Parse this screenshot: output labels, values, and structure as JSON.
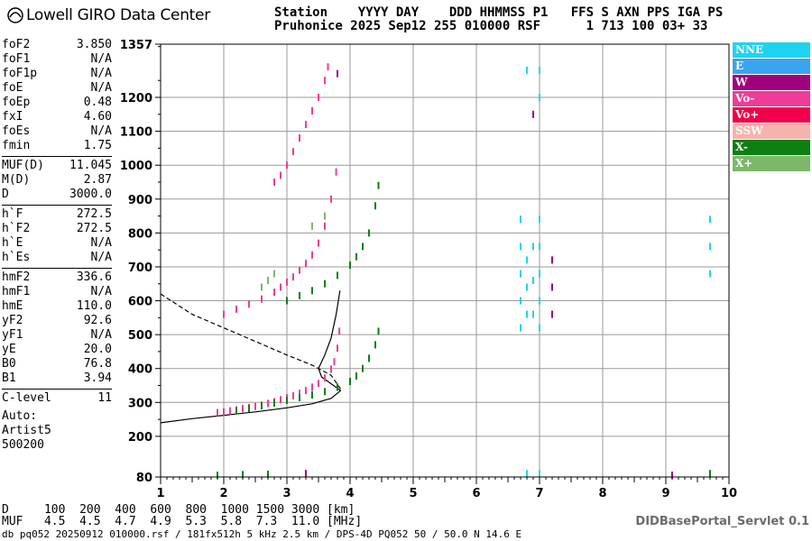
{
  "header": {
    "logo_text": "Lowell GIRO Data Center",
    "line1": "Station    YYYY DAY    DDD HHMMSS P1   FFS S AXN PPS IGA PS",
    "line2": "Pruhonice 2025 Sep12 255 010000 RSF      1 713 100 03+ 33"
  },
  "params": [
    {
      "name": "foF2",
      "value": "3.850"
    },
    {
      "name": "foF1",
      "value": "N/A"
    },
    {
      "name": "foF1p",
      "value": "N/A"
    },
    {
      "name": "foE",
      "value": "N/A"
    },
    {
      "name": "foEp",
      "value": "0.48"
    },
    {
      "name": "fxI",
      "value": "4.60"
    },
    {
      "name": "foEs",
      "value": "N/A"
    },
    {
      "name": "fmin",
      "value": "1.75"
    },
    {
      "sep": true
    },
    {
      "name": "MUF(D)",
      "value": "11.045"
    },
    {
      "name": "M(D)",
      "value": "2.87"
    },
    {
      "name": "D",
      "value": "3000.0"
    },
    {
      "sep": true
    },
    {
      "name": "h`F",
      "value": "272.5"
    },
    {
      "name": "h`F2",
      "value": "272.5"
    },
    {
      "name": "h`E",
      "value": "N/A"
    },
    {
      "name": "h`Es",
      "value": "N/A"
    },
    {
      "sep": true
    },
    {
      "name": "hmF2",
      "value": "336.6"
    },
    {
      "name": "hmF1",
      "value": "N/A"
    },
    {
      "name": "hmE",
      "value": "110.0"
    },
    {
      "name": "yF2",
      "value": "92.6"
    },
    {
      "name": "yF1",
      "value": "N/A"
    },
    {
      "name": "yE",
      "value": "20.0"
    },
    {
      "name": "B0",
      "value": "76.8"
    },
    {
      "name": "B1",
      "value": "3.94"
    },
    {
      "sep": true
    },
    {
      "name": "C-level",
      "value": "11"
    }
  ],
  "auto": {
    "line1": "Auto:",
    "line2": "Artist5",
    "line3": "500200"
  },
  "legend": [
    {
      "label": "NNE",
      "color": "#1fd3f0"
    },
    {
      "label": "E",
      "color": "#3aa3f0"
    },
    {
      "label": "W",
      "color": "#a0007c"
    },
    {
      "label": "Vo-",
      "color": "#ef3d97"
    },
    {
      "label": "Vo+",
      "color": "#f2004a"
    },
    {
      "label": "SSW",
      "color": "#f6b3ab"
    },
    {
      "label": "X-",
      "color": "#0d7f12"
    },
    {
      "label": "X+",
      "color": "#7bb86a"
    }
  ],
  "dmuf": {
    "d_line": "D     100  200  400  600  800  1000 1500 3000 [km]",
    "muf_line": "MUF   4.5  4.5  4.7  4.9  5.3  5.8  7.3  11.0 [MHz]"
  },
  "footer": {
    "text": "db pq052 20250912 010000.rsf / 181fx512h 5 kHz 2.5 km / DPS-4D PQ052 50 / 50.0 N 14.6 E",
    "servlet": "DIDBasePortal_Servlet 0.1"
  },
  "chart_data": {
    "type": "scatter",
    "xlim": [
      1,
      10
    ],
    "ylim": [
      80,
      1357
    ],
    "x_ticks": [
      "1",
      "2",
      "3",
      "4",
      "5",
      "6",
      "7",
      "8",
      "9",
      "10"
    ],
    "y_ticks": [
      "80",
      "200",
      "300",
      "400",
      "500",
      "600",
      "700",
      "800",
      "900",
      "1000",
      "1100",
      "1200",
      "1357"
    ],
    "grid": true,
    "series": [
      {
        "label_key": "Vo-",
        "color": "#ef3d97",
        "points": [
          [
            1.9,
            270
          ],
          [
            2.0,
            272
          ],
          [
            2.1,
            275
          ],
          [
            2.2,
            278
          ],
          [
            2.3,
            282
          ],
          [
            2.4,
            285
          ],
          [
            2.5,
            288
          ],
          [
            2.6,
            292
          ],
          [
            2.7,
            297
          ],
          [
            2.8,
            302
          ],
          [
            2.9,
            308
          ],
          [
            3.0,
            314
          ],
          [
            3.1,
            320
          ],
          [
            3.2,
            327
          ],
          [
            3.3,
            335
          ],
          [
            3.4,
            345
          ],
          [
            3.5,
            356
          ],
          [
            3.6,
            372
          ],
          [
            3.7,
            398
          ],
          [
            3.75,
            420
          ],
          [
            3.8,
            460
          ],
          [
            3.83,
            510
          ],
          [
            2.0,
            560
          ],
          [
            2.2,
            575
          ],
          [
            2.4,
            590
          ],
          [
            2.6,
            605
          ],
          [
            2.8,
            625
          ],
          [
            2.9,
            640
          ],
          [
            3.0,
            655
          ],
          [
            3.1,
            670
          ],
          [
            3.2,
            690
          ],
          [
            3.3,
            710
          ],
          [
            3.4,
            735
          ],
          [
            3.5,
            770
          ],
          [
            3.6,
            820
          ],
          [
            3.7,
            900
          ],
          [
            3.78,
            980
          ],
          [
            2.8,
            950
          ],
          [
            2.9,
            970
          ],
          [
            3.0,
            1000
          ],
          [
            3.1,
            1040
          ],
          [
            3.2,
            1080
          ],
          [
            3.3,
            1120
          ],
          [
            3.4,
            1160
          ],
          [
            3.5,
            1200
          ],
          [
            3.6,
            1250
          ],
          [
            3.65,
            1290
          ]
        ]
      },
      {
        "label_key": "X-",
        "color": "#0d7f12",
        "points": [
          [
            2.2,
            275
          ],
          [
            2.4,
            282
          ],
          [
            2.6,
            290
          ],
          [
            2.8,
            298
          ],
          [
            3.0,
            306
          ],
          [
            3.2,
            314
          ],
          [
            3.4,
            322
          ],
          [
            3.6,
            332
          ],
          [
            3.8,
            345
          ],
          [
            4.0,
            362
          ],
          [
            4.1,
            378
          ],
          [
            4.2,
            400
          ],
          [
            4.3,
            430
          ],
          [
            4.4,
            470
          ],
          [
            4.45,
            510
          ],
          [
            3.0,
            600
          ],
          [
            3.2,
            615
          ],
          [
            3.4,
            630
          ],
          [
            3.6,
            650
          ],
          [
            3.8,
            675
          ],
          [
            4.0,
            705
          ],
          [
            4.1,
            730
          ],
          [
            4.2,
            760
          ],
          [
            4.3,
            800
          ],
          [
            4.4,
            880
          ],
          [
            4.45,
            940
          ],
          [
            1.9,
            85
          ],
          [
            2.3,
            87
          ],
          [
            2.7,
            88
          ],
          [
            9.7,
            90
          ]
        ]
      },
      {
        "label_key": "NNE",
        "color": "#1fd3f0",
        "points": [
          [
            6.7,
            520
          ],
          [
            6.7,
            600
          ],
          [
            6.7,
            680
          ],
          [
            6.7,
            760
          ],
          [
            6.7,
            840
          ],
          [
            6.8,
            560
          ],
          [
            6.8,
            640
          ],
          [
            6.8,
            720
          ],
          [
            6.9,
            560
          ],
          [
            6.9,
            660
          ],
          [
            6.9,
            760
          ],
          [
            7.0,
            520
          ],
          [
            7.0,
            600
          ],
          [
            7.0,
            680
          ],
          [
            7.0,
            760
          ],
          [
            7.0,
            840
          ],
          [
            6.8,
            1280
          ],
          [
            7.0,
            1280
          ],
          [
            7.0,
            1200
          ],
          [
            6.8,
            90
          ],
          [
            7.0,
            90
          ],
          [
            9.7,
            680
          ],
          [
            9.7,
            760
          ],
          [
            9.7,
            840
          ]
        ]
      },
      {
        "label_key": "W",
        "color": "#a0007c",
        "points": [
          [
            7.2,
            560
          ],
          [
            7.2,
            640
          ],
          [
            7.2,
            720
          ],
          [
            6.9,
            1150
          ],
          [
            9.1,
            85
          ],
          [
            3.8,
            1270
          ],
          [
            3.3,
            90
          ]
        ]
      },
      {
        "label_key": "X+",
        "color": "#7bb86a",
        "points": [
          [
            2.7,
            660
          ],
          [
            2.8,
            680
          ],
          [
            2.6,
            640
          ],
          [
            3.4,
            820
          ],
          [
            3.6,
            850
          ]
        ]
      }
    ],
    "curves": [
      {
        "style": "solid",
        "points": [
          [
            1.0,
            240
          ],
          [
            1.5,
            252
          ],
          [
            2.0,
            262
          ],
          [
            2.5,
            272
          ],
          [
            3.0,
            284
          ],
          [
            3.4,
            296
          ],
          [
            3.7,
            312
          ],
          [
            3.85,
            335
          ],
          [
            3.7,
            355
          ],
          [
            3.55,
            375
          ],
          [
            3.5,
            400
          ],
          [
            3.6,
            440
          ],
          [
            3.7,
            490
          ],
          [
            3.78,
            560
          ],
          [
            3.84,
            630
          ]
        ]
      },
      {
        "style": "dashed",
        "points": [
          [
            1.0,
            620
          ],
          [
            1.5,
            560
          ],
          [
            2.0,
            520
          ],
          [
            2.5,
            480
          ],
          [
            3.0,
            440
          ],
          [
            3.4,
            410
          ],
          [
            3.7,
            380
          ],
          [
            3.85,
            340
          ]
        ]
      }
    ]
  }
}
